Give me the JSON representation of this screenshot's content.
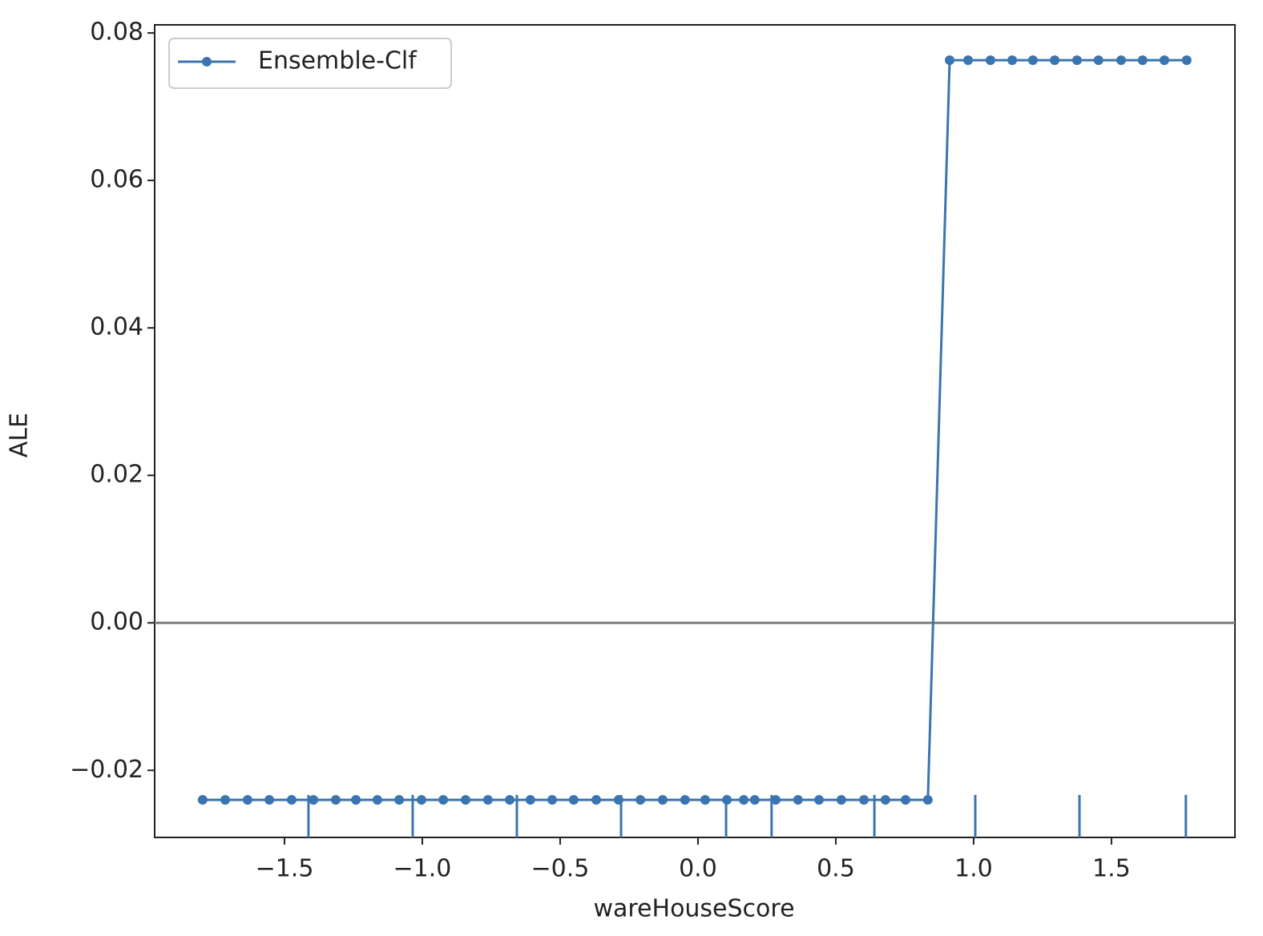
{
  "chart_data": {
    "type": "line",
    "xlabel": "wareHouseScore",
    "ylabel": "ALE",
    "xlim": [
      -1.971,
      1.948
    ],
    "ylim": [
      -0.0291,
      0.0811
    ],
    "xticks": [
      {
        "value": -1.5,
        "label": "−1.5"
      },
      {
        "value": -1.0,
        "label": "−1.0"
      },
      {
        "value": -0.5,
        "label": "−0.5"
      },
      {
        "value": 0.0,
        "label": "0.0"
      },
      0.5,
      {
        "value": 1.0,
        "label": "1.0"
      },
      1.5
    ],
    "yticks": [
      {
        "value": -0.02,
        "label": "−0.02"
      },
      {
        "value": 0,
        "label": "0.00"
      },
      0.02,
      0.04,
      0.06,
      0.08
    ],
    "hline": 0,
    "hline_color": "#7f7f7f",
    "legend": "upper left",
    "series": [
      {
        "name": "Ensemble-Clf",
        "color": "#3b75af",
        "x": [
          -1.797,
          -1.715,
          -1.634,
          -1.555,
          -1.474,
          -1.395,
          -1.314,
          -1.241,
          -1.163,
          -1.084,
          -1.003,
          -0.924,
          -0.843,
          -0.762,
          -0.683,
          -0.608,
          -0.529,
          -0.451,
          -0.369,
          -0.288,
          -0.209,
          -0.128,
          -0.047,
          0.026,
          0.105,
          0.166,
          0.206,
          0.282,
          0.363,
          0.439,
          0.52,
          0.602,
          0.68,
          0.753,
          0.834,
          0.913,
          0.98,
          1.061,
          1.14,
          1.215,
          1.294,
          1.375,
          1.453,
          1.535,
          1.613,
          1.692,
          1.773
        ],
        "values": [
          -0.024,
          -0.024,
          -0.024,
          -0.024,
          -0.024,
          -0.024,
          -0.024,
          -0.024,
          -0.024,
          -0.024,
          -0.024,
          -0.024,
          -0.024,
          -0.024,
          -0.024,
          -0.024,
          -0.024,
          -0.024,
          -0.024,
          -0.024,
          -0.024,
          -0.024,
          -0.024,
          -0.024,
          -0.024,
          -0.024,
          -0.024,
          -0.024,
          -0.024,
          -0.024,
          -0.024,
          -0.024,
          -0.024,
          -0.024,
          -0.024,
          0.0763,
          0.0763,
          0.0763,
          0.0763,
          0.0763,
          0.0763,
          0.0763,
          0.0763,
          0.0763,
          0.0763,
          0.0763,
          0.0763
        ],
        "rug": [
          -1.413,
          -1.035,
          -0.657,
          -0.279,
          0.102,
          0.267,
          0.64,
          1.006,
          1.384,
          1.77
        ]
      }
    ]
  }
}
